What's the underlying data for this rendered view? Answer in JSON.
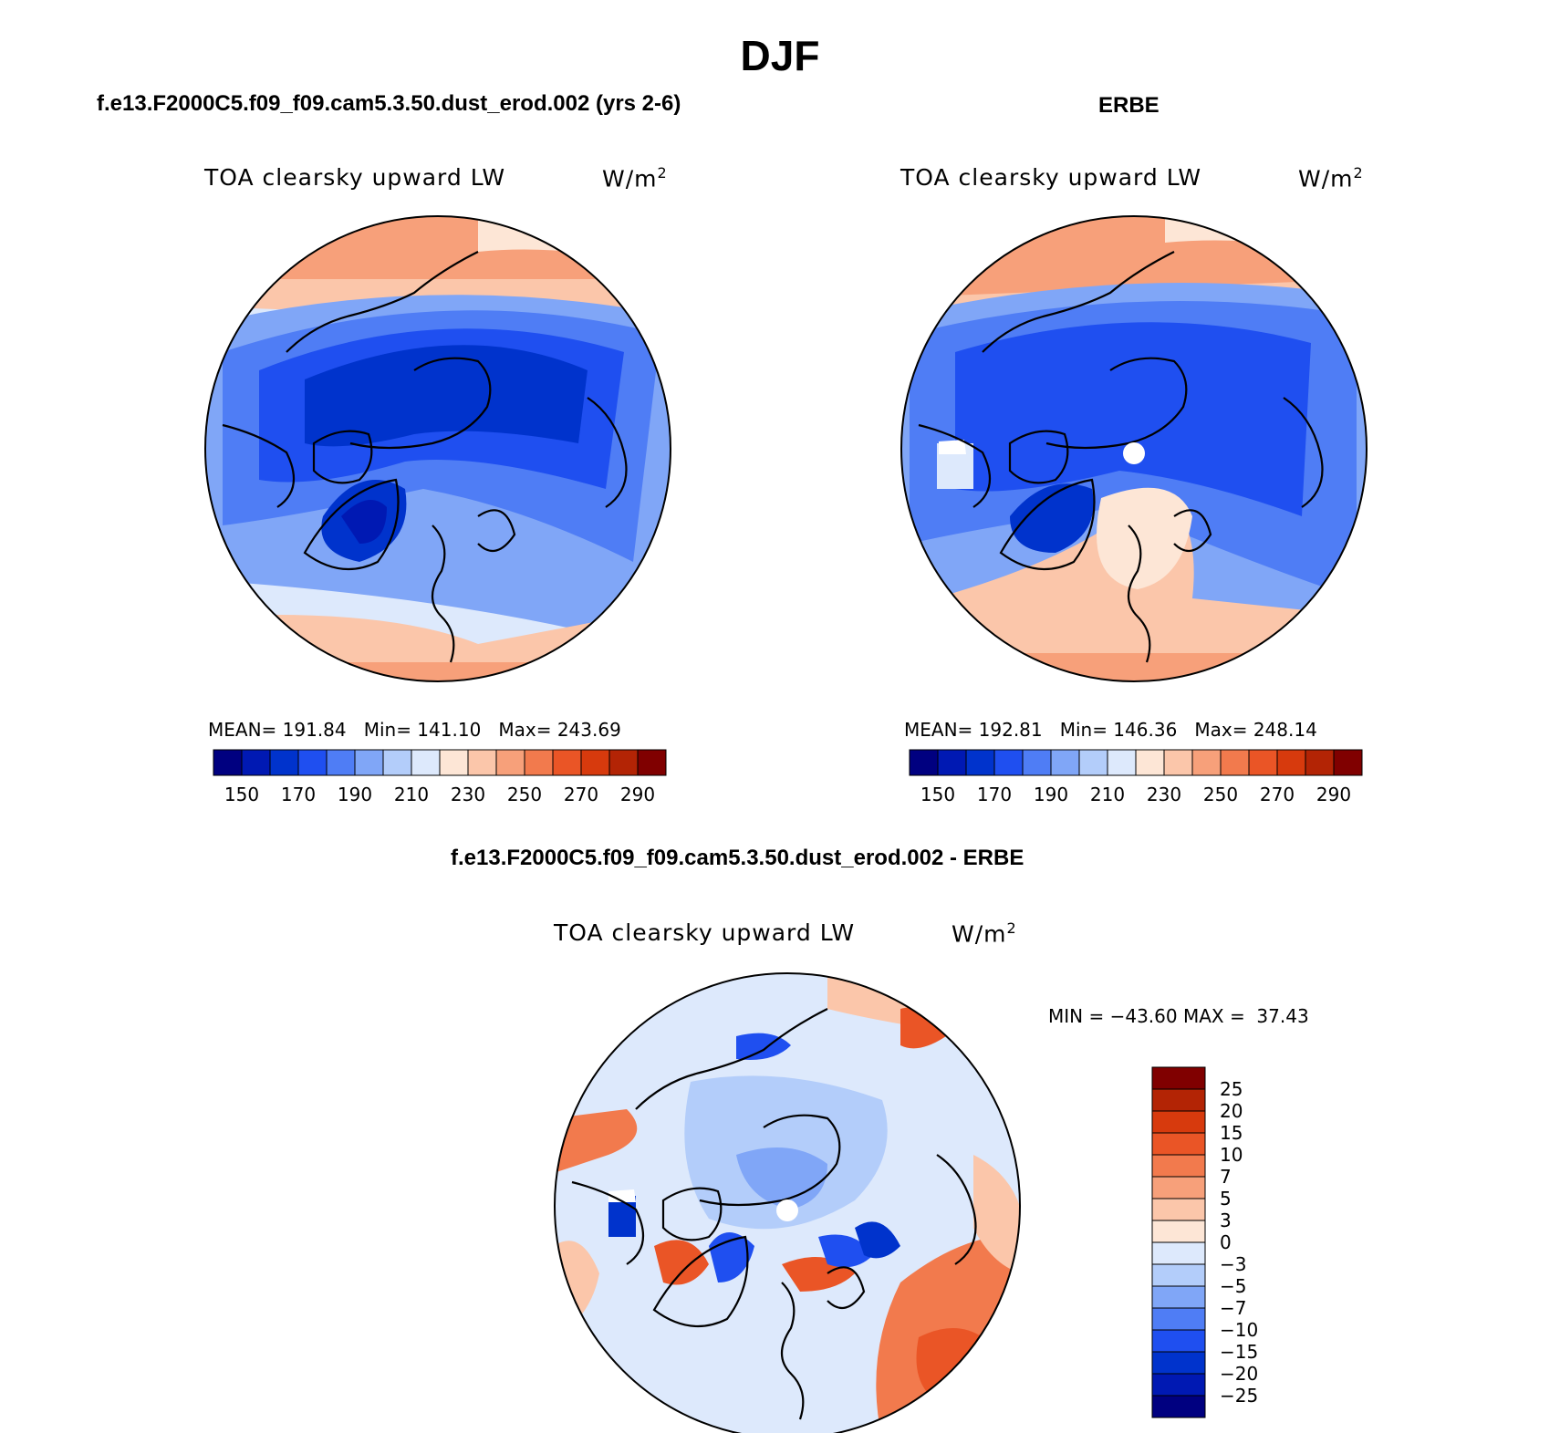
{
  "title": "DJF",
  "panels": [
    {
      "id": "model",
      "title": "f.e13.F2000C5.f09_f09.cam5.3.50.dust_erod.002 (yrs 2-6)",
      "variable": "TOA clearsky upward LW",
      "units": "W/m",
      "units_sup": "2",
      "stats": "MEAN= 191.84   Min= 141.10   Max= 243.69"
    },
    {
      "id": "obs",
      "title": "ERBE",
      "variable": "TOA clearsky upward LW",
      "units": "W/m",
      "units_sup": "2",
      "stats": "MEAN= 192.81   Min= 146.36   Max= 248.14"
    },
    {
      "id": "diff",
      "title": "f.e13.F2000C5.f09_f09.cam5.3.50.dust_erod.002 - ERBE",
      "variable": "TOA clearsky upward LW",
      "units": "W/m",
      "units_sup": "2",
      "stats": "MIN = −43.60 MAX =  37.43"
    }
  ],
  "colorbars": {
    "absolute": {
      "colors": [
        "#000080",
        "#0019b3",
        "#0033cc",
        "#1f4ff0",
        "#4f7df5",
        "#80a6f7",
        "#b3cdfa",
        "#dde9fc",
        "#fde6d6",
        "#fbc6aa",
        "#f7a07a",
        "#f27a4d",
        "#ea5526",
        "#d73a0d",
        "#b32405",
        "#800000"
      ],
      "tick_labels": [
        "150",
        "170",
        "190",
        "210",
        "230",
        "250",
        "270",
        "290"
      ]
    },
    "difference": {
      "colors": [
        "#000080",
        "#0019b3",
        "#0033cc",
        "#1f4ff0",
        "#4f7df5",
        "#80a6f7",
        "#b3cdfa",
        "#dde9fc",
        "#fde6d6",
        "#fbc6aa",
        "#f7a07a",
        "#f27a4d",
        "#ea5526",
        "#d73a0d",
        "#b32405",
        "#800000"
      ],
      "tick_labels": [
        "25",
        "20",
        "15",
        "10",
        "7",
        "5",
        "3",
        "0",
        "−3",
        "−5",
        "−7",
        "−10",
        "−15",
        "−20",
        "−25"
      ]
    }
  },
  "chart_data": [
    {
      "type": "heatmap",
      "title": "f.e13.F2000C5.f09_f09.cam5.3.50.dust_erod.002 (yrs 2-6)",
      "subtitle": "TOA clearsky upward LW",
      "units": "W/m2",
      "projection": "north polar stereographic",
      "contour_levels": [
        150,
        160,
        170,
        180,
        190,
        200,
        210,
        220,
        230,
        240,
        250,
        260,
        270,
        280,
        290
      ],
      "mean": 191.84,
      "min": 141.1,
      "max": 243.69
    },
    {
      "type": "heatmap",
      "title": "ERBE",
      "subtitle": "TOA clearsky upward LW",
      "units": "W/m2",
      "projection": "north polar stereographic",
      "contour_levels": [
        150,
        160,
        170,
        180,
        190,
        200,
        210,
        220,
        230,
        240,
        250,
        260,
        270,
        280,
        290
      ],
      "mean": 192.81,
      "min": 146.36,
      "max": 248.14
    },
    {
      "type": "heatmap",
      "title": "f.e13.F2000C5.f09_f09.cam5.3.50.dust_erod.002 - ERBE",
      "subtitle": "TOA clearsky upward LW",
      "units": "W/m2",
      "projection": "north polar stereographic",
      "contour_levels": [
        -25,
        -20,
        -15,
        -10,
        -7,
        -5,
        -3,
        0,
        3,
        5,
        7,
        10,
        15,
        20,
        25
      ],
      "min": -43.6,
      "max": 37.43
    }
  ]
}
